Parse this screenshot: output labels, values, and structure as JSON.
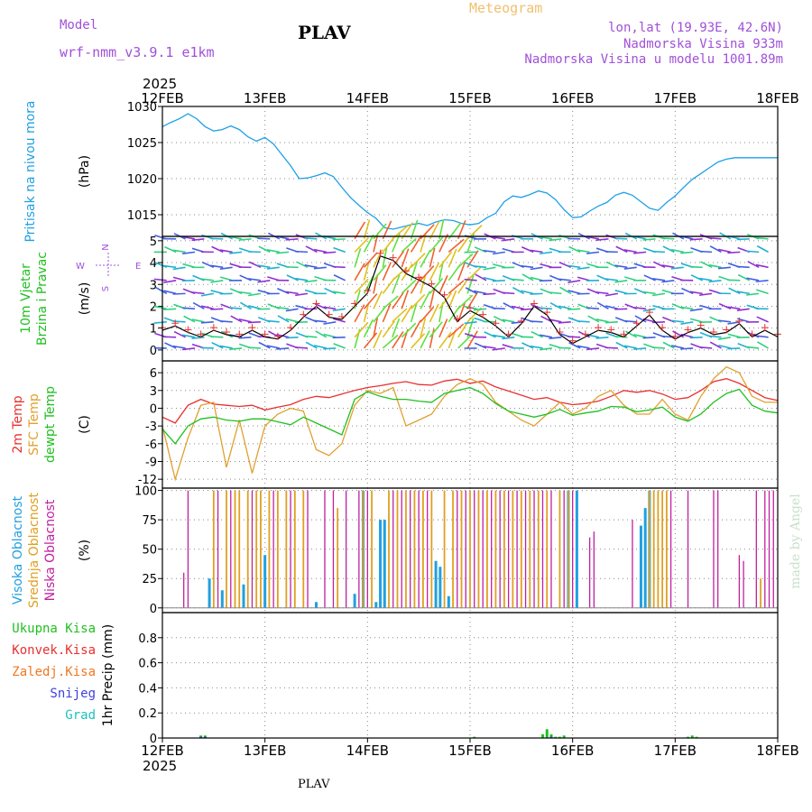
{
  "header": {
    "model_label": "Model",
    "model_name": "wrf-nmm_v3.9.1 e1km",
    "station": "PLAV",
    "meteogram": "Meteogram",
    "coords": "lon,lat (19.93E, 42.6N)",
    "altitude": "Nadmorska Visina 933m",
    "model_altitude": "Nadmorska Visina u modelu 1001.89m",
    "footer_station": "PLAV"
  },
  "colors": {
    "pressure": "#1ea0e8",
    "temp2m": "#e83030",
    "sfc_temp": "#e0a030",
    "dewpt": "#20c020",
    "high_cloud": "#20a0e0",
    "mid_cloud": "#e0a020",
    "low_cloud": "#c020a0",
    "wind_speed": "#000000",
    "gust_marker": "#e83030"
  },
  "chart_data": {
    "type": "line",
    "x_axis": {
      "year_label": "2025",
      "ticks": [
        "12FEB",
        "13FEB",
        "14FEB",
        "15FEB",
        "16FEB",
        "17FEB",
        "18FEB"
      ],
      "range_hours": [
        0,
        144
      ]
    },
    "panels": [
      {
        "id": "pressure",
        "ylabel_colored": [
          "Pritisak na nivou mora"
        ],
        "unit": "(hPa)",
        "ylim": [
          1012,
          1030
        ],
        "yticks": [
          "1030",
          "1025",
          "1020",
          "1015"
        ],
        "series": [
          {
            "key": "pressure",
            "x": [
              0,
              2,
              4,
              6,
              8,
              10,
              12,
              14,
              16,
              18,
              20,
              22,
              24,
              26,
              28,
              30,
              32,
              34,
              36,
              38,
              40,
              42,
              44,
              46,
              48,
              50,
              52,
              54,
              56,
              58,
              60,
              62,
              64,
              66,
              68,
              70,
              72,
              74,
              76,
              78,
              80,
              82,
              84,
              86,
              88,
              90,
              92,
              94,
              96,
              98,
              100,
              102,
              104,
              106,
              108,
              110,
              112,
              114,
              116,
              118,
              120,
              122,
              124,
              126,
              128,
              130,
              132,
              134,
              136,
              138,
              140,
              142,
              144
            ],
            "y": [
              1027.2,
              1027.8,
              1028.3,
              1029.0,
              1028.3,
              1027.2,
              1026.6,
              1026.8,
              1027.3,
              1026.8,
              1025.8,
              1025.2,
              1025.7,
              1024.8,
              1023.3,
              1021.8,
              1020.0,
              1020.1,
              1020.4,
              1020.8,
              1020.3,
              1018.8,
              1017.4,
              1016.3,
              1015.3,
              1014.5,
              1013.2,
              1013.0,
              1013.3,
              1013.6,
              1013.8,
              1013.5,
              1014.0,
              1014.3,
              1014.2,
              1013.8,
              1013.6,
              1013.8,
              1014.6,
              1015.2,
              1016.8,
              1017.6,
              1017.4,
              1017.8,
              1018.3,
              1018.0,
              1017.1,
              1015.7,
              1014.6,
              1014.7,
              1015.5,
              1016.2,
              1016.7,
              1017.7,
              1018.1,
              1017.7,
              1016.8,
              1015.9,
              1015.6,
              1016.7,
              1017.6,
              1018.8,
              1019.9,
              1020.7,
              1021.5,
              1022.3,
              1022.7,
              1022.9,
              1022.9,
              1022.9,
              1022.9,
              1022.9,
              1022.9
            ]
          }
        ]
      },
      {
        "id": "wind",
        "ylabel_colored": [
          "10m Vjetar",
          "Brzina i Pravac"
        ],
        "unit": "(m/s)",
        "compass": {
          "north": "N",
          "east": "E",
          "west": "W",
          "south": "S"
        },
        "ylim": [
          -0.5,
          5.2
        ],
        "yticks": [
          "5",
          "4",
          "3",
          "2",
          "1",
          "0"
        ],
        "series": [
          {
            "key": "wind_speed",
            "x": [
              0,
              3,
              6,
              9,
              12,
              15,
              18,
              21,
              24,
              27,
              30,
              33,
              36,
              39,
              42,
              45,
              48,
              51,
              54,
              57,
              60,
              63,
              66,
              69,
              72,
              75,
              78,
              81,
              84,
              87,
              90,
              93,
              96,
              99,
              102,
              105,
              108,
              111,
              114,
              117,
              120,
              123,
              126,
              129,
              132,
              135,
              138,
              141,
              144
            ],
            "y": [
              0.9,
              1.1,
              0.8,
              0.6,
              0.9,
              0.7,
              0.6,
              0.9,
              0.6,
              0.5,
              0.9,
              1.5,
              2.0,
              1.5,
              1.4,
              2.0,
              2.6,
              4.3,
              4.1,
              3.5,
              3.2,
              2.9,
              2.4,
              1.3,
              1.8,
              1.5,
              1.1,
              0.6,
              1.2,
              2.0,
              1.6,
              0.7,
              0.3,
              0.6,
              0.9,
              0.8,
              0.6,
              1.1,
              1.6,
              0.9,
              0.5,
              0.8,
              1.0,
              0.7,
              0.8,
              1.2,
              0.6,
              0.9,
              0.6
            ]
          }
        ]
      },
      {
        "id": "temperature",
        "ylabel_colored": [
          "2m Temp",
          "SFC Temp",
          "dewpt Temp"
        ],
        "unit": "(C)",
        "ylim": [
          -13.5,
          8
        ],
        "yticks": [
          "6",
          "3",
          "0",
          "-3",
          "-6",
          "-9",
          "-12"
        ],
        "series": [
          {
            "key": "temp2m",
            "x": [
              0,
              3,
              6,
              9,
              12,
              15,
              18,
              21,
              24,
              27,
              30,
              33,
              36,
              39,
              42,
              45,
              48,
              51,
              54,
              57,
              60,
              63,
              66,
              69,
              72,
              75,
              78,
              81,
              84,
              87,
              90,
              93,
              96,
              99,
              102,
              105,
              108,
              111,
              114,
              117,
              120,
              123,
              126,
              129,
              132,
              135,
              138,
              141,
              144
            ],
            "y": [
              -1.5,
              -2.5,
              0.5,
              1.5,
              0.7,
              0.5,
              0.3,
              0.5,
              -0.3,
              0.2,
              0.6,
              1.5,
              2.0,
              1.8,
              2.4,
              3.0,
              3.5,
              3.8,
              4.2,
              4.5,
              4.0,
              3.9,
              4.6,
              4.9,
              4.2,
              4.6,
              3.6,
              2.9,
              2.2,
              1.5,
              1.8,
              1.0,
              0.6,
              0.8,
              1.2,
              2.0,
              3.0,
              2.7,
              3.0,
              2.4,
              1.5,
              1.8,
              3.0,
              4.5,
              5.0,
              4.2,
              3.0,
              1.8,
              1.3
            ]
          },
          {
            "key": "sfc_temp",
            "x": [
              0,
              3,
              6,
              9,
              12,
              15,
              18,
              21,
              24,
              27,
              30,
              33,
              36,
              39,
              42,
              45,
              48,
              51,
              54,
              57,
              60,
              63,
              66,
              69,
              72,
              75,
              78,
              81,
              84,
              87,
              90,
              93,
              96,
              99,
              102,
              105,
              108,
              111,
              114,
              117,
              120,
              123,
              126,
              129,
              132,
              135,
              138,
              141,
              144
            ],
            "y": [
              -3,
              -12,
              -5,
              0.5,
              1,
              -10,
              -2,
              -11,
              -3,
              -1,
              0,
              -0.5,
              -7,
              -8,
              -6,
              0.5,
              3,
              2.5,
              3.5,
              -3,
              -2,
              -1,
              2,
              4,
              5,
              4,
              1,
              -0.5,
              -2,
              -3,
              -1,
              1,
              -1,
              0,
              2,
              3,
              0.5,
              -1,
              -1,
              1.5,
              -1,
              -2,
              2,
              5,
              7,
              6,
              2,
              1,
              1
            ]
          },
          {
            "key": "dewpt",
            "x": [
              0,
              3,
              6,
              9,
              12,
              15,
              18,
              21,
              24,
              27,
              30,
              33,
              36,
              39,
              42,
              45,
              48,
              51,
              54,
              57,
              60,
              63,
              66,
              69,
              72,
              75,
              78,
              81,
              84,
              87,
              90,
              93,
              96,
              99,
              102,
              105,
              108,
              111,
              114,
              117,
              120,
              123,
              126,
              129,
              132,
              135,
              138,
              141,
              144
            ],
            "y": [
              -3.5,
              -6,
              -3,
              -1.8,
              -1.5,
              -2,
              -2.2,
              -1.8,
              -1.8,
              -2.3,
              -2.8,
              -1.5,
              -2.5,
              -3.5,
              -4.5,
              1.5,
              2.8,
              2.0,
              1.5,
              1.5,
              1.2,
              1.0,
              2.5,
              3.0,
              3.5,
              2.5,
              0.8,
              -0.5,
              -1.0,
              -1.5,
              -1.0,
              -0.2,
              -1.2,
              -0.8,
              -0.5,
              0.3,
              0.2,
              -0.6,
              -0.3,
              0.2,
              -1.5,
              -2.2,
              -1.0,
              1.0,
              2.5,
              3.2,
              0.5,
              -0.5,
              -0.8
            ]
          }
        ]
      },
      {
        "id": "clouds",
        "ylabel_colored": [
          "Visoka Oblacnost",
          "Srednja Oblacnost",
          "Niska Oblacnost"
        ],
        "unit": "(%)",
        "ylim": [
          -4,
          102
        ],
        "yticks": [
          "100",
          "75",
          "50",
          "25",
          "0"
        ],
        "series": [
          {
            "key": "high_cloud",
            "x": [
              11,
              14,
              19,
              24,
              36,
              45,
              47,
              50,
              51,
              52,
              64,
              65,
              67,
              95,
              97,
              112,
              113,
              114
            ],
            "y": [
              25,
              15,
              20,
              45,
              5,
              12,
              100,
              5,
              75,
              75,
              40,
              35,
              10,
              100,
              100,
              70,
              85,
              100
            ]
          },
          {
            "key": "mid_cloud",
            "x": [
              12,
              15,
              17,
              18,
              20,
              22,
              23,
              25,
              27,
              29,
              31,
              33,
              41,
              47,
              49,
              53,
              55,
              57,
              59,
              61,
              63,
              66,
              68,
              70,
              72,
              74,
              76,
              78,
              80,
              82,
              84,
              86,
              88,
              90,
              93,
              95,
              114,
              115,
              116,
              117,
              118,
              140
            ],
            "y": [
              100,
              100,
              100,
              100,
              100,
              100,
              100,
              100,
              100,
              100,
              100,
              100,
              85,
              100,
              100,
              100,
              100,
              100,
              100,
              100,
              100,
              100,
              100,
              100,
              100,
              100,
              100,
              100,
              100,
              100,
              100,
              100,
              100,
              100,
              100,
              100,
              100,
              100,
              100,
              100,
              100,
              25
            ]
          },
          {
            "key": "low_cloud",
            "x": [
              5,
              6,
              13,
              16,
              21,
              26,
              30,
              34,
              38,
              40,
              43,
              46,
              48,
              54,
              56,
              58,
              60,
              62,
              69,
              71,
              73,
              75,
              77,
              79,
              81,
              83,
              85,
              87,
              89,
              91,
              94,
              96,
              100,
              101,
              110,
              119,
              123,
              129,
              130,
              135,
              136,
              139,
              141,
              142,
              143
            ],
            "y": [
              30,
              100,
              100,
              100,
              100,
              100,
              100,
              100,
              100,
              100,
              100,
              100,
              100,
              100,
              100,
              100,
              100,
              100,
              100,
              100,
              100,
              100,
              100,
              100,
              100,
              100,
              100,
              100,
              100,
              100,
              100,
              100,
              60,
              65,
              75,
              100,
              100,
              100,
              100,
              45,
              40,
              100,
              100,
              100,
              100
            ]
          }
        ]
      },
      {
        "id": "precip",
        "ylabel_colored": [
          "Ukupna Kisa",
          "Konvek.Kisa",
          "Zaledj.Kisa",
          "Snijeg",
          "Grad"
        ],
        "unit": "1hr Precip (mm)",
        "ylim": [
          0,
          1.0
        ],
        "yticks": [
          "0.8",
          "0.6",
          "0.4",
          "0.2",
          "0"
        ],
        "series": [
          {
            "key": "total_rain",
            "x": [
              9,
              10,
              73,
              89,
              90,
              91,
              92,
              93,
              94,
              123,
              124,
              125
            ],
            "y": [
              0.02,
              0.02,
              0.01,
              0.03,
              0.07,
              0.03,
              0.01,
              0.01,
              0.02,
              0.01,
              0.02,
              0.01
            ]
          },
          {
            "key": "snow",
            "x": [
              9,
              10,
              91
            ],
            "y": [
              0.01,
              0.01,
              0.01
            ]
          }
        ]
      }
    ],
    "side_credit": "made by Angel"
  },
  "panel_colors": {
    "pressure_label": [
      "#20a0e0"
    ],
    "wind_label": [
      "#20c020",
      "#20c020"
    ],
    "temp_label": [
      "#e83030",
      "#e0a030",
      "#20c020"
    ],
    "cloud_label": [
      "#20a0e0",
      "#e0a020",
      "#c020a0"
    ],
    "precip_label": [
      "#20c020",
      "#e83030",
      "#f07820",
      "#4040e0",
      "#20c0c0"
    ]
  }
}
